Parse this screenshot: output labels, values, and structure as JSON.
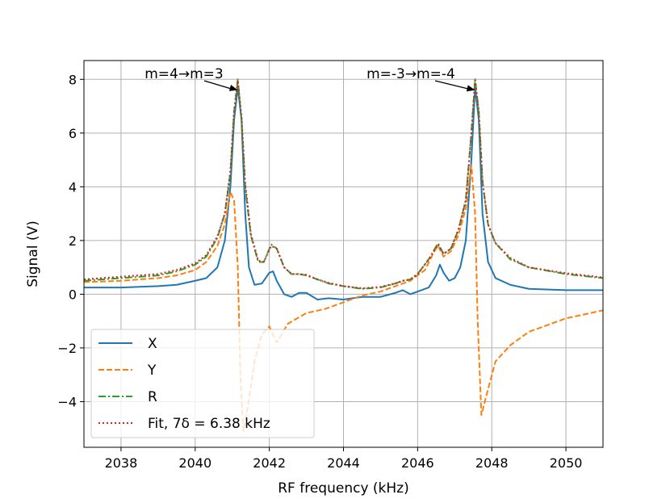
{
  "chart_data": {
    "type": "line",
    "xlabel": "RF frequency (kHz)",
    "ylabel": "Signal (V)",
    "xlim": [
      2037,
      2051
    ],
    "ylim": [
      -5.7,
      8.7
    ],
    "xticks": [
      2038,
      2040,
      2042,
      2044,
      2046,
      2048,
      2050
    ],
    "yticks": [
      -4,
      -2,
      0,
      2,
      4,
      6,
      8
    ],
    "ytick_labels": [
      "−4",
      "−2",
      "0",
      "2",
      "4",
      "6",
      "8"
    ],
    "grid": true,
    "legend_position": "lower-left",
    "annotations": [
      {
        "text": "m=4→m=3",
        "x": 2041.15,
        "y": 7.6
      },
      {
        "text": "m=-3→m=-4",
        "x": 2047.55,
        "y": 7.6
      }
    ],
    "series": [
      {
        "name": "X",
        "color": "#1f77b4",
        "style": "solid",
        "points": [
          [
            2037,
            0.25
          ],
          [
            2038,
            0.25
          ],
          [
            2039,
            0.3
          ],
          [
            2039.5,
            0.35
          ],
          [
            2040,
            0.5
          ],
          [
            2040.3,
            0.6
          ],
          [
            2040.6,
            1.0
          ],
          [
            2040.8,
            2.0
          ],
          [
            2040.95,
            4.0
          ],
          [
            2041.05,
            6.5
          ],
          [
            2041.15,
            7.7
          ],
          [
            2041.25,
            6.5
          ],
          [
            2041.35,
            3.0
          ],
          [
            2041.45,
            1.0
          ],
          [
            2041.6,
            0.35
          ],
          [
            2041.8,
            0.4
          ],
          [
            2042.0,
            0.8
          ],
          [
            2042.1,
            0.85
          ],
          [
            2042.2,
            0.5
          ],
          [
            2042.4,
            0.0
          ],
          [
            2042.6,
            -0.1
          ],
          [
            2042.8,
            0.05
          ],
          [
            2043.0,
            0.05
          ],
          [
            2043.3,
            -0.2
          ],
          [
            2043.6,
            -0.15
          ],
          [
            2044.0,
            -0.2
          ],
          [
            2044.5,
            -0.1
          ],
          [
            2045.0,
            -0.1
          ],
          [
            2045.4,
            0.05
          ],
          [
            2045.6,
            0.15
          ],
          [
            2045.8,
            0.0
          ],
          [
            2046.1,
            0.15
          ],
          [
            2046.3,
            0.25
          ],
          [
            2046.5,
            0.7
          ],
          [
            2046.6,
            1.1
          ],
          [
            2046.7,
            0.8
          ],
          [
            2046.85,
            0.5
          ],
          [
            2047.0,
            0.6
          ],
          [
            2047.15,
            1.0
          ],
          [
            2047.3,
            2.0
          ],
          [
            2047.45,
            5.0
          ],
          [
            2047.55,
            7.7
          ],
          [
            2047.65,
            6.5
          ],
          [
            2047.75,
            3.0
          ],
          [
            2047.9,
            1.2
          ],
          [
            2048.1,
            0.6
          ],
          [
            2048.5,
            0.35
          ],
          [
            2049,
            0.2
          ],
          [
            2050,
            0.15
          ],
          [
            2051,
            0.15
          ]
        ]
      },
      {
        "name": "Y",
        "color": "#ff7f0e",
        "style": "dashed",
        "points": [
          [
            2037,
            0.45
          ],
          [
            2038,
            0.5
          ],
          [
            2039,
            0.6
          ],
          [
            2039.5,
            0.7
          ],
          [
            2040,
            0.9
          ],
          [
            2040.3,
            1.2
          ],
          [
            2040.6,
            1.8
          ],
          [
            2040.8,
            2.6
          ],
          [
            2040.95,
            3.8
          ],
          [
            2041.05,
            3.5
          ],
          [
            2041.15,
            1.0
          ],
          [
            2041.22,
            -3.0
          ],
          [
            2041.3,
            -5.1
          ],
          [
            2041.42,
            -4.2
          ],
          [
            2041.6,
            -2.5
          ],
          [
            2041.8,
            -1.5
          ],
          [
            2042.0,
            -1.2
          ],
          [
            2042.2,
            -1.8
          ],
          [
            2042.5,
            -1.1
          ],
          [
            2043.0,
            -0.7
          ],
          [
            2043.5,
            -0.55
          ],
          [
            2044.0,
            -0.3
          ],
          [
            2044.5,
            -0.05
          ],
          [
            2045.0,
            0.1
          ],
          [
            2045.4,
            0.3
          ],
          [
            2045.6,
            0.4
          ],
          [
            2045.8,
            0.5
          ],
          [
            2046.0,
            0.7
          ],
          [
            2046.2,
            0.9
          ],
          [
            2046.45,
            1.6
          ],
          [
            2046.55,
            1.8
          ],
          [
            2046.7,
            1.4
          ],
          [
            2046.9,
            1.6
          ],
          [
            2047.1,
            2.2
          ],
          [
            2047.3,
            3.2
          ],
          [
            2047.45,
            4.8
          ],
          [
            2047.55,
            3.0
          ],
          [
            2047.62,
            -1.0
          ],
          [
            2047.72,
            -4.5
          ],
          [
            2047.85,
            -3.8
          ],
          [
            2048.1,
            -2.5
          ],
          [
            2048.5,
            -1.9
          ],
          [
            2049,
            -1.4
          ],
          [
            2050,
            -0.9
          ],
          [
            2051,
            -0.6
          ]
        ]
      },
      {
        "name": "R",
        "color": "#2ca02c",
        "style": "dashdot",
        "points": [
          [
            2037,
            0.5
          ],
          [
            2038,
            0.6
          ],
          [
            2039,
            0.7
          ],
          [
            2039.5,
            0.85
          ],
          [
            2040,
            1.1
          ],
          [
            2040.3,
            1.4
          ],
          [
            2040.6,
            2.1
          ],
          [
            2040.8,
            3.0
          ],
          [
            2040.95,
            4.5
          ],
          [
            2041.05,
            6.8
          ],
          [
            2041.15,
            8.0
          ],
          [
            2041.25,
            6.5
          ],
          [
            2041.35,
            4.0
          ],
          [
            2041.5,
            2.2
          ],
          [
            2041.7,
            1.2
          ],
          [
            2041.85,
            1.2
          ],
          [
            2042.05,
            1.85
          ],
          [
            2042.2,
            1.7
          ],
          [
            2042.4,
            1.0
          ],
          [
            2042.6,
            0.75
          ],
          [
            2042.8,
            0.75
          ],
          [
            2043.0,
            0.7
          ],
          [
            2043.3,
            0.55
          ],
          [
            2043.6,
            0.4
          ],
          [
            2044.0,
            0.3
          ],
          [
            2044.5,
            0.2
          ],
          [
            2045.0,
            0.25
          ],
          [
            2045.4,
            0.4
          ],
          [
            2045.6,
            0.5
          ],
          [
            2045.8,
            0.55
          ],
          [
            2046.0,
            0.75
          ],
          [
            2046.3,
            1.3
          ],
          [
            2046.55,
            1.9
          ],
          [
            2046.7,
            1.5
          ],
          [
            2046.9,
            1.7
          ],
          [
            2047.1,
            2.4
          ],
          [
            2047.3,
            3.5
          ],
          [
            2047.45,
            6.0
          ],
          [
            2047.55,
            8.0
          ],
          [
            2047.65,
            6.8
          ],
          [
            2047.75,
            4.2
          ],
          [
            2047.9,
            2.6
          ],
          [
            2048.1,
            1.9
          ],
          [
            2048.5,
            1.3
          ],
          [
            2049,
            1.0
          ],
          [
            2050,
            0.75
          ],
          [
            2051,
            0.6
          ]
        ]
      },
      {
        "name": "Fit, 7δ = 6.38 kHz",
        "color": "#d62728",
        "style": "dotted",
        "points": [
          [
            2037,
            0.55
          ],
          [
            2038,
            0.65
          ],
          [
            2039,
            0.75
          ],
          [
            2039.5,
            0.9
          ],
          [
            2040,
            1.15
          ],
          [
            2040.3,
            1.45
          ],
          [
            2040.6,
            2.15
          ],
          [
            2040.8,
            3.0
          ],
          [
            2040.95,
            4.6
          ],
          [
            2041.05,
            6.8
          ],
          [
            2041.15,
            7.95
          ],
          [
            2041.25,
            6.6
          ],
          [
            2041.35,
            4.1
          ],
          [
            2041.5,
            2.25
          ],
          [
            2041.7,
            1.25
          ],
          [
            2041.85,
            1.2
          ],
          [
            2042.05,
            1.8
          ],
          [
            2042.2,
            1.7
          ],
          [
            2042.4,
            1.0
          ],
          [
            2042.6,
            0.75
          ],
          [
            2042.8,
            0.75
          ],
          [
            2043.0,
            0.72
          ],
          [
            2043.3,
            0.55
          ],
          [
            2043.6,
            0.42
          ],
          [
            2044.0,
            0.3
          ],
          [
            2044.5,
            0.22
          ],
          [
            2045.0,
            0.27
          ],
          [
            2045.4,
            0.4
          ],
          [
            2045.6,
            0.5
          ],
          [
            2045.8,
            0.55
          ],
          [
            2046.0,
            0.75
          ],
          [
            2046.3,
            1.3
          ],
          [
            2046.55,
            1.85
          ],
          [
            2046.7,
            1.5
          ],
          [
            2046.9,
            1.7
          ],
          [
            2047.1,
            2.4
          ],
          [
            2047.3,
            3.5
          ],
          [
            2047.45,
            6.0
          ],
          [
            2047.55,
            7.95
          ],
          [
            2047.65,
            6.8
          ],
          [
            2047.75,
            4.2
          ],
          [
            2047.9,
            2.6
          ],
          [
            2048.1,
            1.9
          ],
          [
            2048.5,
            1.35
          ],
          [
            2049,
            1.0
          ],
          [
            2050,
            0.78
          ],
          [
            2051,
            0.62
          ]
        ]
      }
    ]
  }
}
